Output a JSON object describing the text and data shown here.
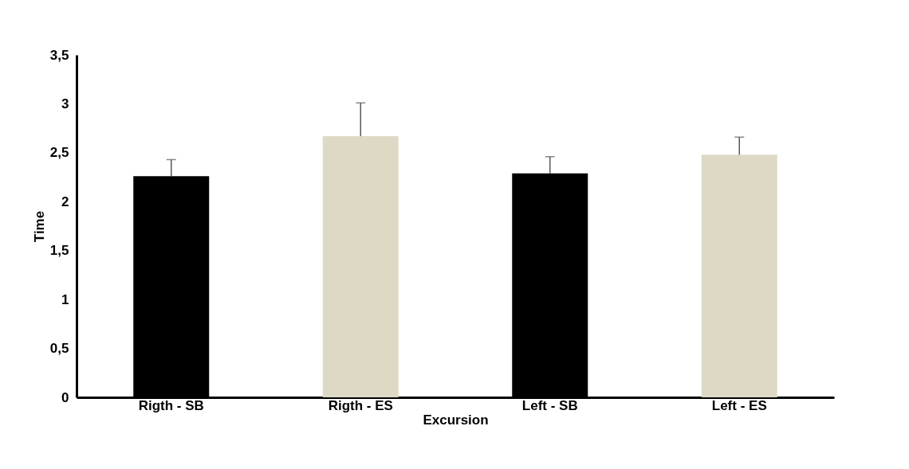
{
  "chart_data": {
    "type": "bar",
    "categories": [
      "Rigth - SB",
      "Rigth  - ES",
      "Left - SB",
      "Left - ES"
    ],
    "values": [
      2.26,
      2.67,
      2.29,
      2.48
    ],
    "colors": [
      "#000000",
      "#ddd9c4",
      "#000000",
      "#ddd9c4"
    ],
    "errors": [
      [
        2.26,
        2.43
      ],
      [
        2.67,
        3.01
      ],
      [
        2.29,
        2.46
      ],
      [
        2.48,
        2.66
      ]
    ],
    "xlabel": "Excursion",
    "ylabel": "Time",
    "ylim": [
      0,
      3.5
    ],
    "yticks": [
      0,
      {
        "value": 0.5,
        "label": "0,5"
      },
      1,
      {
        "value": 1.5,
        "label": "1,5"
      },
      2,
      {
        "value": 2.5,
        "label": "2,5"
      },
      3,
      {
        "value": 3.5,
        "label": "3,5"
      }
    ],
    "grid": false,
    "legend": false
  }
}
